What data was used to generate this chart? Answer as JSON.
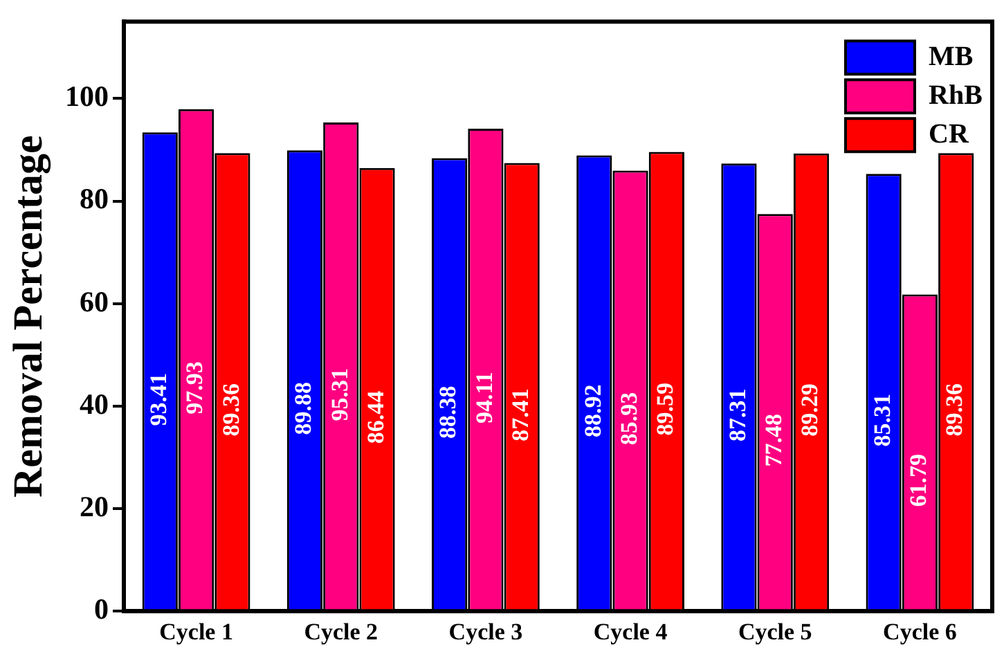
{
  "chart_data": {
    "type": "bar",
    "ylabel": "Removal Percentage",
    "categories": [
      "Cycle 1",
      "Cycle 2",
      "Cycle 3",
      "Cycle 4",
      "Cycle 5",
      "Cycle 6"
    ],
    "series": [
      {
        "name": "MB",
        "color": "#0000ff",
        "values": [
          93.41,
          89.88,
          88.38,
          88.92,
          87.31,
          85.31
        ]
      },
      {
        "name": "RhB",
        "color": "#ff0080",
        "values": [
          97.93,
          95.31,
          94.11,
          85.93,
          77.48,
          61.79
        ]
      },
      {
        "name": "CR",
        "color": "#ff0000",
        "values": [
          89.36,
          86.44,
          87.41,
          89.59,
          89.29,
          89.36
        ]
      }
    ],
    "ylim": [
      0,
      115
    ],
    "yticks": [
      0,
      20,
      40,
      60,
      80,
      100
    ],
    "grid": false,
    "legend": "top right",
    "data_labels": true
  }
}
